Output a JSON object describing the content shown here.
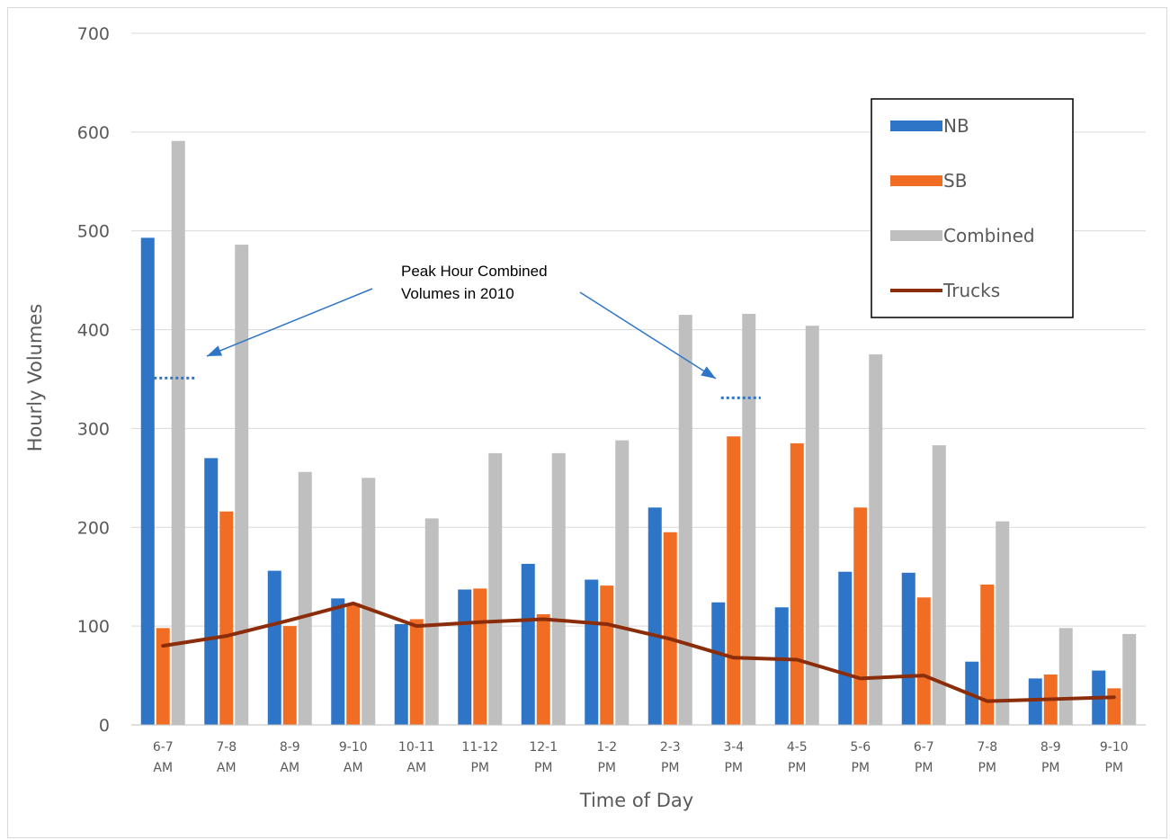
{
  "chart_data": {
    "type": "bar",
    "xlabel": "Time of Day",
    "ylabel": "Hourly Volumes",
    "ylim": [
      0,
      700
    ],
    "yticks": [
      0,
      100,
      200,
      300,
      400,
      500,
      600,
      700
    ],
    "grid": true,
    "legend_placement": "top-right",
    "categories": [
      [
        "6-7",
        "AM"
      ],
      [
        "7-8",
        "AM"
      ],
      [
        "8-9",
        "AM"
      ],
      [
        "9-10",
        "AM"
      ],
      [
        "10-11",
        "AM"
      ],
      [
        "11-12",
        "PM"
      ],
      [
        "12-1",
        "PM"
      ],
      [
        "1-2",
        "PM"
      ],
      [
        "2-3",
        "PM"
      ],
      [
        "3-4",
        "PM"
      ],
      [
        "4-5",
        "PM"
      ],
      [
        "5-6",
        "PM"
      ],
      [
        "6-7",
        "PM"
      ],
      [
        "7-8",
        "PM"
      ],
      [
        "8-9",
        "PM"
      ],
      [
        "9-10",
        "PM"
      ]
    ],
    "series": [
      {
        "name": "NB",
        "kind": "bar",
        "color": "#2e75c7",
        "values": [
          493,
          270,
          156,
          128,
          102,
          137,
          163,
          147,
          220,
          124,
          119,
          155,
          154,
          64,
          47,
          55
        ]
      },
      {
        "name": "SB",
        "kind": "bar",
        "color": "#f26d24",
        "values": [
          98,
          216,
          100,
          123,
          107,
          138,
          112,
          141,
          195,
          292,
          285,
          220,
          129,
          142,
          51,
          37
        ]
      },
      {
        "name": "Combined",
        "kind": "bar",
        "color": "#bfbfbf",
        "values": [
          591,
          486,
          256,
          250,
          209,
          275,
          275,
          288,
          415,
          416,
          404,
          375,
          283,
          206,
          98,
          92
        ]
      },
      {
        "name": "Trucks",
        "kind": "line",
        "color": "#8b2d0a",
        "values": [
          80,
          90,
          106,
          123,
          100,
          104,
          107,
          102,
          87,
          68,
          66,
          47,
          50,
          24,
          26,
          28
        ]
      }
    ],
    "annotation": {
      "text_lines": [
        "Peak Hour Combined",
        "Volumes in 2010"
      ],
      "markers": [
        {
          "category_index": 0,
          "value": 351
        },
        {
          "category_index": 9,
          "value": 331
        }
      ]
    }
  }
}
